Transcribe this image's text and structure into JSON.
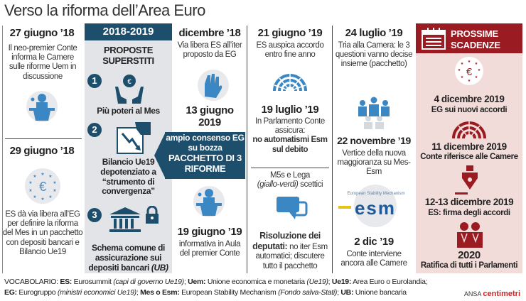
{
  "title": "Verso la riforma dell’Area Euro",
  "col1": {
    "date1": "27 giugno ’18",
    "text1": "Il neo-premier Conte informa le Camere sulle riforme Uem in discussione",
    "date2": "29 giugno ’18",
    "text2": "ES dà via libera all’EG per definire la riforma del Mes in un pacchetto con depositi bancari e Bilancio Ue19"
  },
  "col2": {
    "header": "2018-2019",
    "subtitle": "PROPOSTE SUPERSTITI",
    "items": [
      {
        "num": "1",
        "label": "Più poteri al Mes"
      },
      {
        "num": "2",
        "label": "Bilancio Ue19 depotenziato a “strumento di convergenza”"
      },
      {
        "num": "3",
        "label": "Schema comune di assicurazione sui depositi bancari",
        "label_italic": "(UB)"
      }
    ]
  },
  "col3": {
    "date1": "dicembre ’18",
    "text1": "Via libera ES all’iter proposto da EG",
    "date2": "13 giugno 2019",
    "callout1": "ampio consenso EG su bozza",
    "callout2": "PACCHETTO DI 3 RIFORME",
    "date3": "19 giugno ’19",
    "text3": "informativa in Aula del premier Conte"
  },
  "col4": {
    "date1": "21 giugno ’19",
    "text1": "ES auspica accordo entro fine anno",
    "date2": "19 luglio ’19",
    "text2": "In Parlamento Conte assicura:",
    "text2b": "no automatismi Esm sul debito",
    "text3a": "M5s e Lega",
    "text3b": "(giallo-verdi)",
    "text3c": "scettici",
    "text4a": "Risoluzione dei deputati:",
    "text4b": "no iter Esm automatici; discutere tutto il pacchetto"
  },
  "col5": {
    "date1": "24 luglio ’19",
    "text1": "Tria alla Camera: le 3 questioni vanno decise insieme (pacchetto)",
    "date2": "22 novembre ’19",
    "text2": "Vertice della nuova maggioranza su Mes-Esm",
    "logo_caption": "European Stability Mechanism",
    "logo": "esm",
    "date3": "2 dic ’19",
    "text3": "Conte interviene ancora alle Camere"
  },
  "col6": {
    "header": "PROSSIME SCADENZE",
    "items": [
      {
        "date": "4 dicembre 2019",
        "text": "EG sui nuovi accordi"
      },
      {
        "date": "11 dicembre 2019",
        "text": "Conte riferisce alle Camere"
      },
      {
        "date": "12-13 dicembre 2019",
        "text": "ES: firma degli accordi"
      },
      {
        "date": "2020",
        "text": "Ratifica di tutti i Parlamenti"
      }
    ]
  },
  "vocab": {
    "label": "VOCABOLARIO:",
    "l1": [
      {
        "k": "ES:",
        "v": " Eurosummit ",
        "i": "(capi di governo Ue19)",
        "s": "; "
      },
      {
        "k": "Uem:",
        "v": " Unione economica e monetaria ",
        "i": "(Ue19)",
        "s": "; "
      },
      {
        "k": "Ue19:",
        "v": " Area Euro o Eurolandia;",
        "i": "",
        "s": ""
      }
    ],
    "l2": [
      {
        "k": "EG:",
        "v": " Eurogruppo ",
        "i": "(ministri economici Ue19)",
        "s": "; "
      },
      {
        "k": "Mes o Esm:",
        "v": " European Stability Mechanism ",
        "i": "(Fondo salva-Stati)",
        "s": "; "
      },
      {
        "k": "UB:",
        "v": " Unione bancaria",
        "i": "",
        "s": ""
      }
    ]
  },
  "credit": {
    "a": "ANSA",
    "b": "centimetri"
  },
  "colors": {
    "navy": "#1d4e6b",
    "blue": "#3b87c4",
    "maroon": "#9b1b22",
    "pink": "#f2dcd9",
    "gray": "#e2e4e7"
  }
}
